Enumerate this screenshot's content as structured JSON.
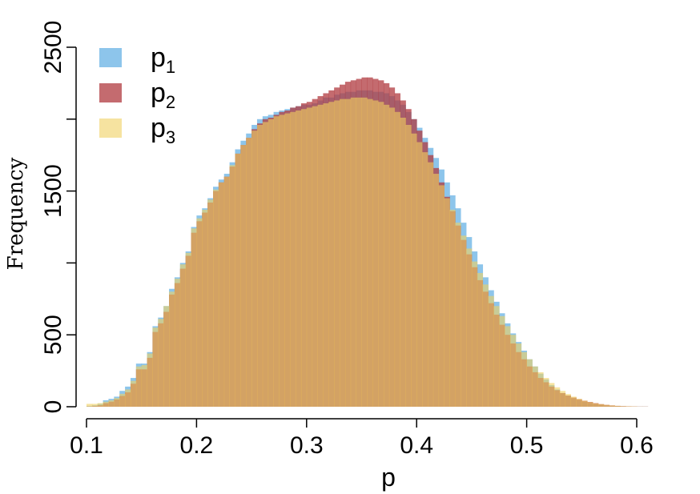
{
  "chart_data": {
    "type": "histogram",
    "title": "",
    "xlabel": "p",
    "ylabel": "Frequency",
    "xlim": [
      0.1,
      0.65
    ],
    "ylim": [
      0,
      2500
    ],
    "xticks": [
      "0.1",
      "0.2",
      "0.3",
      "0.4",
      "0.5",
      "0.6"
    ],
    "yticks": [
      "0",
      "500",
      "1500",
      "2500"
    ],
    "legend_position": "top-left",
    "bin_start": 0.1,
    "bin_width": 0.005,
    "series": [
      {
        "name": "p1",
        "label_base": "p",
        "label_sub": "1",
        "color": "#5dade2",
        "values": [
          5,
          10,
          20,
          45,
          55,
          70,
          110,
          140,
          200,
          300,
          300,
          380,
          560,
          620,
          700,
          820,
          900,
          1000,
          1080,
          1250,
          1330,
          1380,
          1450,
          1530,
          1580,
          1620,
          1700,
          1790,
          1850,
          1900,
          1960,
          2000,
          2020,
          2030,
          2050,
          2060,
          2070,
          2080,
          2090,
          2100,
          2100,
          2110,
          2130,
          2150,
          2150,
          2170,
          2180,
          2190,
          2190,
          2200,
          2200,
          2200,
          2190,
          2190,
          2180,
          2160,
          2130,
          2100,
          2050,
          2000,
          1940,
          1870,
          1800,
          1730,
          1650,
          1560,
          1470,
          1380,
          1280,
          1180,
          1080,
          990,
          900,
          810,
          730,
          650,
          580,
          510,
          450,
          390,
          330,
          280,
          230,
          190,
          150,
          120,
          95,
          75,
          58,
          44,
          33,
          25,
          18,
          13,
          9,
          6,
          4,
          3,
          2,
          1,
          1,
          1,
          0,
          0,
          0,
          0,
          0,
          0,
          0,
          0
        ]
      },
      {
        "name": "p2",
        "label_base": "p",
        "label_sub": "2",
        "color": "#b03a3f",
        "values": [
          2,
          5,
          10,
          25,
          35,
          50,
          75,
          100,
          160,
          260,
          260,
          340,
          520,
          580,
          660,
          780,
          860,
          960,
          1050,
          1210,
          1290,
          1350,
          1420,
          1500,
          1560,
          1600,
          1670,
          1760,
          1820,
          1870,
          1930,
          1970,
          2000,
          2010,
          2030,
          2050,
          2060,
          2080,
          2090,
          2110,
          2120,
          2140,
          2160,
          2180,
          2200,
          2220,
          2240,
          2260,
          2270,
          2280,
          2290,
          2290,
          2280,
          2270,
          2250,
          2220,
          2180,
          2130,
          2070,
          2000,
          1920,
          1840,
          1750,
          1660,
          1560,
          1460,
          1360,
          1260,
          1160,
          1060,
          970,
          880,
          800,
          720,
          640,
          570,
          500,
          440,
          380,
          330,
          280,
          240,
          200,
          170,
          140,
          115,
          95,
          78,
          64,
          52,
          42,
          33,
          25,
          18,
          13,
          9,
          6,
          4,
          3,
          2,
          1,
          1,
          0,
          0,
          0,
          0,
          0,
          0
        ]
      },
      {
        "name": "p3",
        "label_base": "p",
        "label_sub": "3",
        "color": "#f0d060",
        "values": [
          20,
          20,
          25,
          35,
          45,
          60,
          90,
          120,
          180,
          280,
          290,
          370,
          550,
          610,
          700,
          800,
          890,
          990,
          1070,
          1240,
          1310,
          1370,
          1440,
          1510,
          1560,
          1600,
          1680,
          1760,
          1820,
          1870,
          1920,
          1960,
          1980,
          2000,
          2020,
          2030,
          2040,
          2050,
          2060,
          2070,
          2080,
          2090,
          2100,
          2110,
          2120,
          2130,
          2140,
          2140,
          2150,
          2150,
          2150,
          2140,
          2130,
          2120,
          2100,
          2080,
          2050,
          2010,
          1960,
          1900,
          1840,
          1770,
          1700,
          1620,
          1540,
          1450,
          1370,
          1280,
          1190,
          1100,
          1010,
          930,
          850,
          770,
          700,
          630,
          560,
          500,
          440,
          380,
          330,
          280,
          240,
          200,
          165,
          135,
          110,
          88,
          70,
          55,
          42,
          32,
          24,
          18,
          13,
          9,
          6,
          4,
          3,
          2,
          1,
          1,
          0,
          0,
          0,
          0,
          0
        ]
      }
    ]
  }
}
